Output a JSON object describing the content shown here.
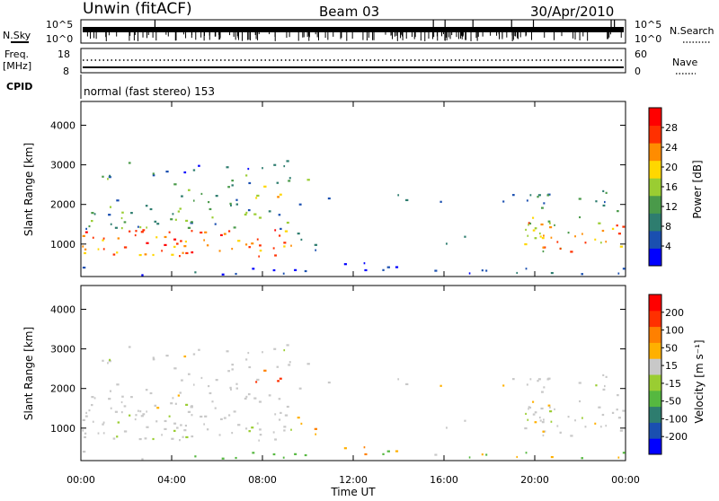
{
  "header": {
    "station": "Unwin (fitACF)",
    "beam": "Beam 03",
    "date": "30/Apr/2010"
  },
  "top_panels": {
    "nsky_label": "N.Sky",
    "nsky_ticks": [
      "10^5",
      "10^0"
    ],
    "nsearch_label": "N.Search",
    "nsearch_ticks": [
      "10^5",
      "10^0"
    ],
    "freq_label_1": "Freq.",
    "freq_label_2": "[MHz]",
    "freq_ticks": [
      "18",
      "8"
    ],
    "nave_label": "Nave",
    "nave_ticks": [
      "60",
      "0"
    ],
    "cpid_label": "CPID",
    "cpid_text": "normal (fast stereo) 153"
  },
  "chart_data": [
    {
      "type": "heatmap",
      "name": "power",
      "ylabel": "Slant Range [km]",
      "yticks": [
        "4000",
        "3000",
        "2000",
        "1000"
      ],
      "ylim": [
        180,
        4600
      ],
      "xlabel": "Time UT",
      "colorbar_label": "Power [dB]",
      "colorbar_ticks": [
        "28",
        "24",
        "20",
        "16",
        "12",
        "8",
        "4"
      ],
      "colorbar_colors": [
        "#0000ff",
        "#1a4fb0",
        "#2e7d6f",
        "#4a9a4a",
        "#9acd32",
        "#ffd700",
        "#ff8c00",
        "#ff3000",
        "#ff0000"
      ]
    },
    {
      "type": "heatmap",
      "name": "velocity",
      "ylabel": "Slant Range [km]",
      "yticks": [
        "4000",
        "3000",
        "2000",
        "1000"
      ],
      "ylim": [
        180,
        4600
      ],
      "xlabel": "Time UT",
      "colorbar_label": "Velocity [m s⁻¹]",
      "colorbar_ticks": [
        "200",
        "100",
        "50",
        "15",
        "-15",
        "-50",
        "-100",
        "-200"
      ],
      "colorbar_colors": [
        "#0000ff",
        "#1a4fb0",
        "#2e7d6f",
        "#56b840",
        "#9acd32",
        "#c8c8c8",
        "#ffb000",
        "#ff8000",
        "#ff3000",
        "#ff0000"
      ]
    }
  ],
  "time_axis": {
    "ticks": [
      "00:00",
      "04:00",
      "08:00",
      "12:00",
      "16:00",
      "20:00",
      "00:00"
    ],
    "label": "Time UT"
  }
}
